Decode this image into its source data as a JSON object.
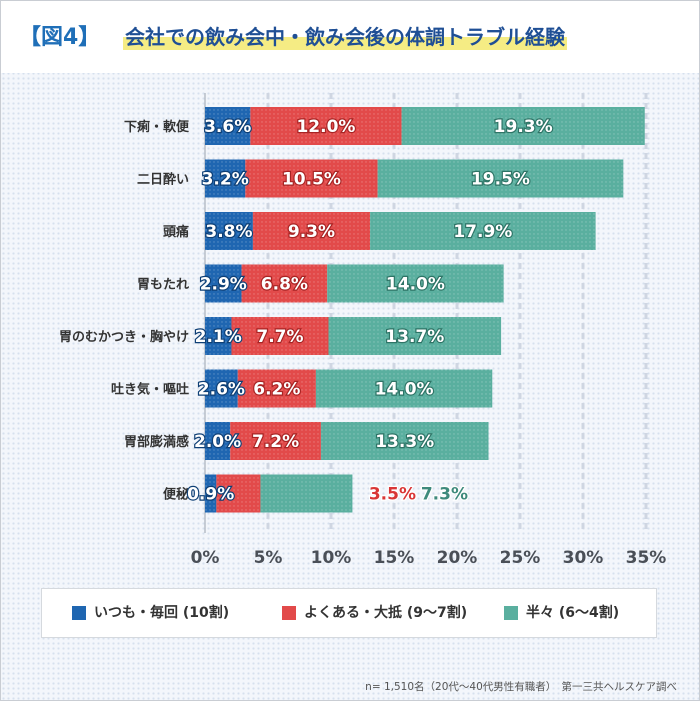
{
  "header": {
    "figure_tag": "【図4】",
    "title": "会社での飲み会中・飲み会後の体調トラブル経験"
  },
  "colors": {
    "always": "#1f66b1",
    "often": "#e24a4a",
    "half": "#5aaf9f",
    "often_label": "#d93636",
    "half_label": "#3e8a7c"
  },
  "chart_data": {
    "type": "bar",
    "orientation": "horizontal",
    "stacked": true,
    "title": "会社での飲み会中・飲み会後の体調トラブル経験",
    "xlabel": "",
    "ylabel": "",
    "xlim": [
      0,
      35
    ],
    "x_ticks": [
      "0%",
      "5%",
      "10%",
      "15%",
      "20%",
      "25%",
      "30%",
      "35%"
    ],
    "grid": true,
    "legend_position": "bottom",
    "categories": [
      "下痢・軟便",
      "二日酔い",
      "頭痛",
      "胃もたれ",
      "胃のむかつき・胸やけ",
      "吐き気・嘔吐",
      "胃部膨満感",
      "便秘"
    ],
    "series": [
      {
        "name": "いつも・毎回 (10割)",
        "key": "always",
        "values": [
          3.6,
          3.2,
          3.8,
          2.9,
          2.1,
          2.6,
          2.0,
          0.9
        ],
        "labels": [
          "3.6%",
          "3.2%",
          "3.8%",
          "2.9%",
          "2.1%",
          "2.6%",
          "2.0%",
          "0.9%"
        ]
      },
      {
        "name": "よくある・大抵 (9〜7割)",
        "key": "often",
        "values": [
          12.0,
          10.5,
          9.3,
          6.8,
          7.7,
          6.2,
          7.2,
          3.5
        ],
        "labels": [
          "12.0%",
          "10.5%",
          "9.3%",
          "6.8%",
          "7.7%",
          "6.2%",
          "7.2%",
          "3.5%"
        ]
      },
      {
        "name": "半々 (6〜4割)",
        "key": "half",
        "values": [
          19.3,
          19.5,
          17.9,
          14.0,
          13.7,
          14.0,
          13.3,
          7.3
        ],
        "labels": [
          "19.3%",
          "19.5%",
          "17.9%",
          "14.0%",
          "13.7%",
          "14.0%",
          "13.3%",
          "7.3%"
        ]
      }
    ]
  },
  "legend": [
    {
      "label": "いつも・毎回 (10割)",
      "key": "always"
    },
    {
      "label": "よくある・大抵 (9〜7割)",
      "key": "often"
    },
    {
      "label": "半々 (6〜4割)",
      "key": "half"
    }
  ],
  "footnote": "n= 1,510名（20代〜40代男性有職者）　第一三共ヘルスケア調べ"
}
